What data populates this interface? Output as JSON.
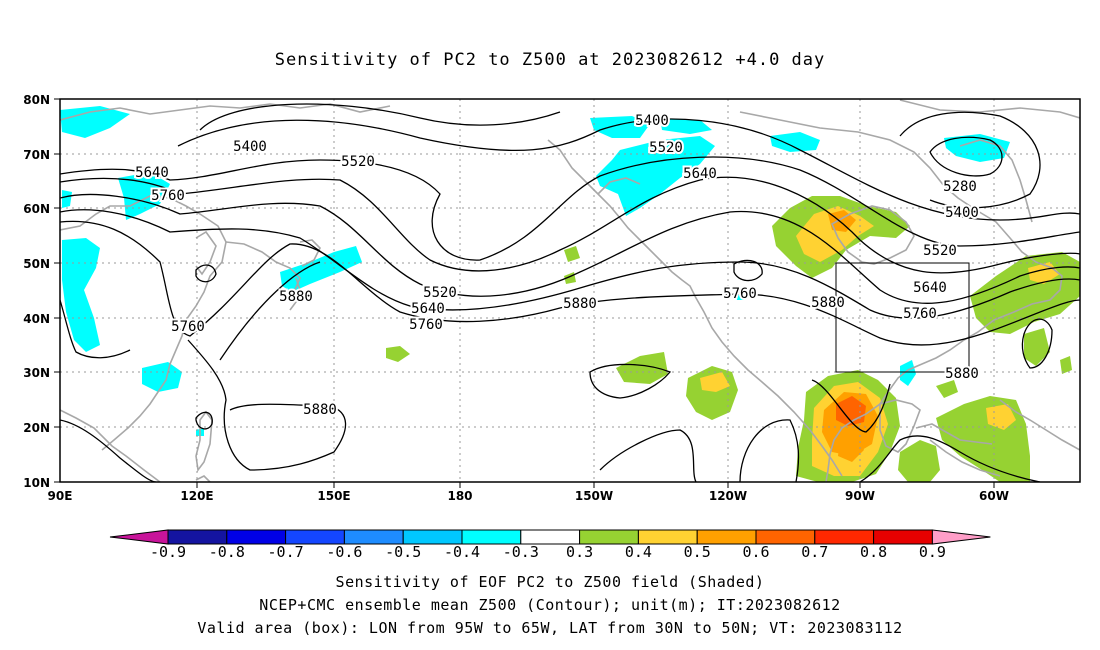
{
  "title": "Sensitivity of PC2 to Z500 at 2023082612 +4.0 day",
  "map": {
    "lon_range": [
      "90E",
      "50W"
    ],
    "lat_range": [
      "10N",
      "80N"
    ],
    "lat_ticks": [
      "80N",
      "70N",
      "60N",
      "50N",
      "40N",
      "30N",
      "20N",
      "10N"
    ],
    "lon_ticks": [
      "90E",
      "120E",
      "150E",
      "180",
      "150W",
      "120W",
      "90W",
      "60W"
    ],
    "contour_labels": [
      "5400",
      "5520",
      "5640",
      "5760",
      "5880",
      "5280",
      "5400",
      "5520",
      "5640",
      "5760",
      "5880",
      "5520",
      "5640",
      "5760",
      "5880",
      "5400",
      "5520",
      "5640",
      "5760",
      "5880"
    ],
    "valid_box": {
      "lon_from": "95W",
      "lon_to": "65W",
      "lat_from": "30N",
      "lat_to": "50N"
    }
  },
  "colorbar": {
    "levels": [
      "-0.9",
      "-0.8",
      "-0.7",
      "-0.6",
      "-0.5",
      "-0.4",
      "-0.3",
      "0.3",
      "0.4",
      "0.5",
      "0.6",
      "0.7",
      "0.8",
      "0.9"
    ],
    "colors": [
      "#c8149a",
      "#1414a0",
      "#0000e6",
      "#1446ff",
      "#1e8cff",
      "#00c8ff",
      "#00ffff",
      "#ffffff",
      "#96d232",
      "#ffd232",
      "#ffa000",
      "#ff6400",
      "#ff2800",
      "#e60000",
      "#ff9ec8"
    ]
  },
  "captions": {
    "line1": "Sensitivity of EOF PC2 to Z500 field (Shaded)",
    "line2": "NCEP+CMC ensemble mean Z500 (Contour); unit(m); IT:2023082612",
    "line3": "Valid area (box): LON from 95W to 65W, LAT from 30N to 50N; VT: 2023083112"
  }
}
